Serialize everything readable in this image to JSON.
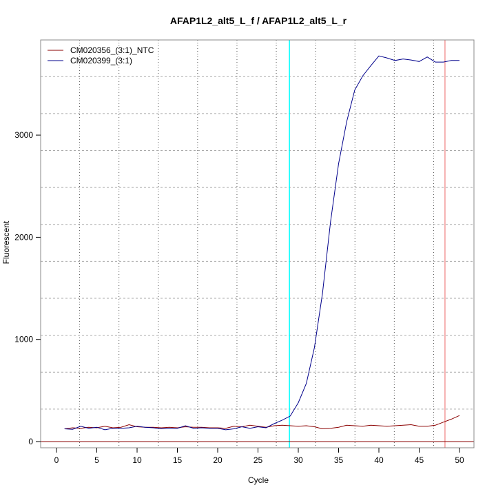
{
  "chart_data": {
    "type": "line",
    "title": "AFAP1L2_alt5_L_f / AFAP1L2_alt5_L_r",
    "xlabel": "Cycle",
    "ylabel": "Fluorescent",
    "xlim": [
      -2,
      52
    ],
    "ylim": [
      -30,
      3900
    ],
    "xticks": [
      0,
      5,
      10,
      15,
      20,
      25,
      30,
      35,
      40,
      45,
      50
    ],
    "yticks": [
      0,
      1000,
      2000,
      3000
    ],
    "grid": true,
    "legend_position": "top-left",
    "threshold_cycle_line": {
      "x": 28.9,
      "color": "#00ffff"
    },
    "end_cycle_line": {
      "x": 48.2,
      "color": "#f08080"
    },
    "baseline": {
      "y": 0,
      "color": "#8b0000"
    },
    "x": [
      1,
      2,
      3,
      4,
      5,
      6,
      7,
      8,
      9,
      10,
      11,
      12,
      13,
      14,
      15,
      16,
      17,
      18,
      19,
      20,
      21,
      22,
      23,
      24,
      25,
      26,
      27,
      28,
      29,
      30,
      31,
      32,
      33,
      34,
      35,
      36,
      37,
      38,
      39,
      40,
      41,
      42,
      43,
      44,
      45,
      46,
      47,
      48,
      49,
      50
    ],
    "series": [
      {
        "name": "CM020356_(3:1)_NTC",
        "color": "#8b0000",
        "values": [
          125,
          135,
          130,
          140,
          135,
          150,
          135,
          140,
          165,
          145,
          140,
          140,
          135,
          140,
          135,
          145,
          140,
          140,
          135,
          135,
          130,
          150,
          145,
          160,
          150,
          140,
          155,
          160,
          155,
          150,
          155,
          145,
          125,
          130,
          140,
          160,
          155,
          150,
          160,
          155,
          150,
          155,
          160,
          165,
          150,
          150,
          160,
          190,
          220,
          255
        ]
      },
      {
        "name": "CM020399_(3:1)",
        "color": "#00008b",
        "values": [
          125,
          120,
          150,
          130,
          140,
          115,
          130,
          130,
          135,
          150,
          140,
          135,
          125,
          130,
          130,
          155,
          130,
          135,
          130,
          130,
          115,
          125,
          145,
          130,
          145,
          135,
          175,
          210,
          250,
          380,
          570,
          920,
          1450,
          2150,
          2720,
          3130,
          3440,
          3580,
          3680,
          3775,
          3755,
          3730,
          3745,
          3735,
          3720,
          3765,
          3715,
          3715,
          3730,
          3730
        ]
      }
    ]
  }
}
